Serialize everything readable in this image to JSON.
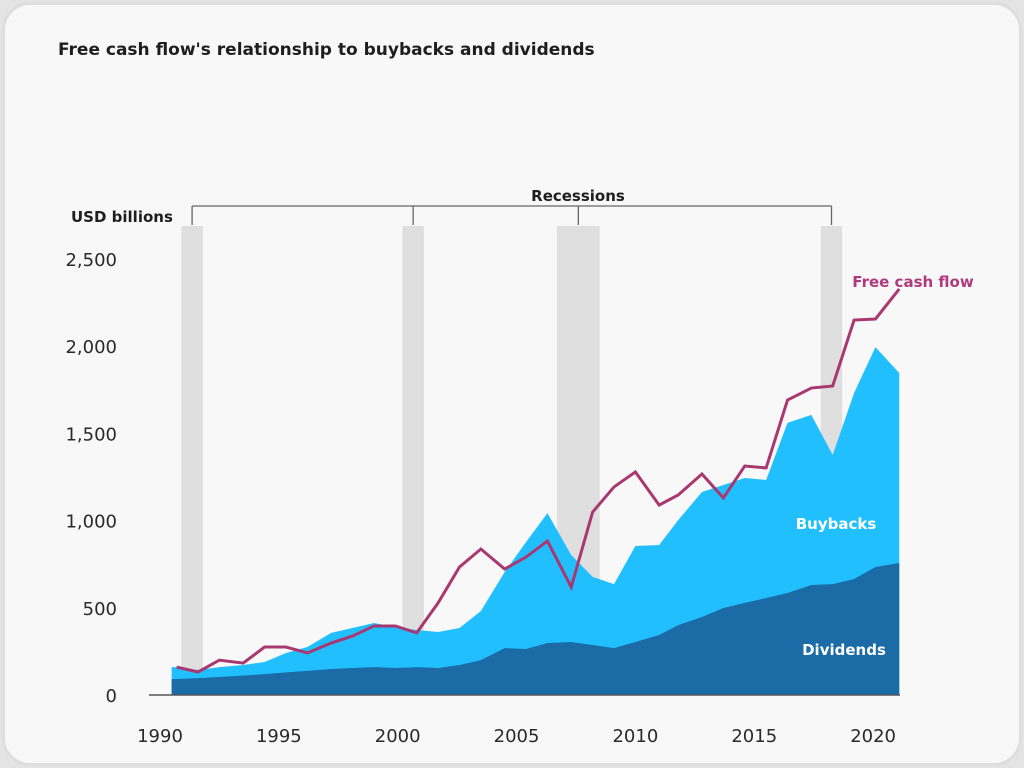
{
  "chart_data": {
    "type": "area",
    "title": "Free cash flow's relationship to buybacks and dividends",
    "ylabel": "USD billions",
    "ylim": [
      0,
      2500
    ],
    "yticks": [
      0,
      500,
      1000,
      1500,
      2000,
      2500
    ],
    "ytick_labels": [
      "0",
      "500",
      "1,000",
      "1,500",
      "2,000",
      "2,500"
    ],
    "xticks": [
      1990,
      1995,
      2000,
      2005,
      2010,
      2015,
      2020
    ],
    "xtick_labels": [
      "1990",
      "1995",
      "2000",
      "2005",
      "2010",
      "2015",
      "2020"
    ],
    "grid": false,
    "x": [
      1990.7,
      1991.6,
      1992.5,
      1993.5,
      1994.4,
      1995.3,
      1996.2,
      1997.2,
      1998.1,
      1999.0,
      1999.9,
      2000.8,
      2001.7,
      2002.6,
      2003.5,
      2004.5,
      2005.4,
      2006.3,
      2007.3,
      2008.2,
      2009.1,
      2010.0,
      2011.0,
      2011.8,
      2012.8,
      2013.7,
      2014.6,
      2015.5,
      2016.4,
      2017.4,
      2018.3,
      2019.2,
      2020.1,
      2021.1
    ],
    "series": [
      {
        "name": "Dividends",
        "kind": "stacked-area",
        "color": "#1a6ba6",
        "values": [
          92,
          97,
          103,
          111,
          120,
          130,
          138,
          149,
          155,
          160,
          155,
          160,
          155,
          172,
          200,
          269,
          264,
          298,
          304,
          287,
          269,
          304,
          344,
          401,
          447,
          499,
          528,
          556,
          585,
          631,
          636,
          665,
          734,
          757
        ]
      },
      {
        "name": "Buybacks",
        "kind": "stacked-area",
        "color": "#22bfff",
        "values": [
          68,
          46,
          57,
          61,
          69,
          111,
          137,
          207,
          229,
          253,
          235,
          213,
          206,
          212,
          282,
          436,
          613,
          745,
          499,
          390,
          367,
          550,
          516,
          602,
          717,
          705,
          716,
          677,
          975,
          975,
          740,
          1067,
          1261,
          1089
        ]
      },
      {
        "name": "Free cash flow",
        "kind": "line",
        "color": "#a8386f",
        "values": [
          160,
          132,
          200,
          183,
          275,
          275,
          241,
          298,
          338,
          396,
          396,
          356,
          528,
          734,
          837,
          722,
          791,
          883,
          619,
          1049,
          1193,
          1279,
          1089,
          1147,
          1267,
          1130,
          1313,
          1302,
          1691,
          1760,
          1772,
          2150,
          2156,
          2328
        ]
      }
    ],
    "annotations": {
      "recessions_label": "Recessions",
      "recession_bands": [
        [
          1990.9,
          1991.8
        ],
        [
          2000.2,
          2001.1
        ],
        [
          2006.7,
          2008.5
        ],
        [
          2017.8,
          2018.7
        ]
      ]
    },
    "colors": {
      "background": "#f8f8f8",
      "recession_band": "#dfdfdf",
      "axis": "#555555"
    }
  }
}
